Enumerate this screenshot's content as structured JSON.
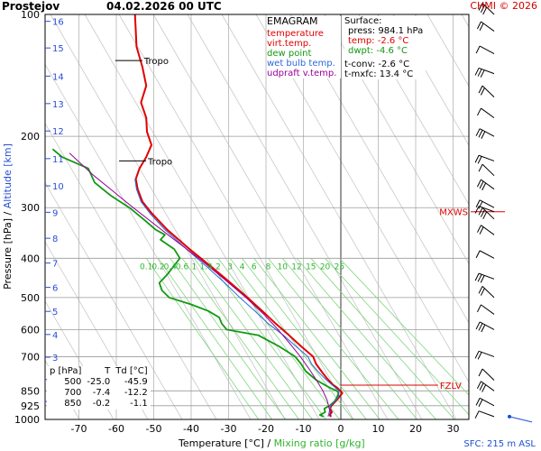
{
  "header": {
    "station": "Prostejov",
    "datetime": "04.02.2026 00 UTC",
    "credit": "CHMI © 2026"
  },
  "legend": {
    "title": "EMAGRAM",
    "items": [
      {
        "label": "temperature",
        "color": "#e00000"
      },
      {
        "label": "virt.temp.",
        "color": "#e00000"
      },
      {
        "label": "dew point",
        "color": "#119911"
      },
      {
        "label": "wet bulb temp.",
        "color": "#2a6ad9"
      },
      {
        "label": "udpraft v.temp.",
        "color": "#990099"
      }
    ]
  },
  "surface": {
    "title": "Surface:",
    "press": "press: 984.1 hPa",
    "temp": "temp: -2.6 °C",
    "dwpt": "dwpt: -4.6 °C",
    "tconv": "t-conv: -2.6 °C",
    "tmxfc": "t-mxfc: 13.4 °C"
  },
  "level_table": {
    "headers": [
      "p [hPa]",
      "T",
      "Td [°C]"
    ],
    "rows": [
      [
        "500",
        "-25.0",
        "-45.9"
      ],
      [
        "700",
        "-7.4",
        "-12.2"
      ],
      [
        "850",
        "-0.2",
        "-1.1"
      ]
    ]
  },
  "markers": {
    "tropo": "Tropo",
    "mxws": "MXWS",
    "fzlv": "FZLV"
  },
  "axes": {
    "xlabel_temp": "Temperature [°C]",
    "xlabel_sep": "/",
    "xlabel_mixing": "Mixing ratio [g/kg]",
    "ylabel_pressure": "Pressure [hPa]",
    "ylabel_sep": "/",
    "ylabel_altitude": "Altitude [km]",
    "sfc_label": "SFC: 215 m ASL"
  },
  "chart_data": {
    "type": "line",
    "y_scale": "log",
    "xlim": [
      -80,
      35
    ],
    "ylim": [
      1000,
      100
    ],
    "x_ticks": [
      -70,
      -60,
      -50,
      -40,
      -30,
      -20,
      -10,
      0,
      10,
      20,
      30
    ],
    "pressure_ticks": [
      1000,
      925,
      850,
      700,
      600,
      500,
      400,
      300,
      200,
      100
    ],
    "altitude_ticks_km": [
      {
        "km": 1,
        "p": 903
      },
      {
        "km": 2,
        "p": 797
      },
      {
        "km": 3,
        "p": 702
      },
      {
        "km": 4,
        "p": 617
      },
      {
        "km": 5,
        "p": 541
      },
      {
        "km": 6,
        "p": 472
      },
      {
        "km": 7,
        "p": 411
      },
      {
        "km": 8,
        "p": 357
      },
      {
        "km": 9,
        "p": 308
      },
      {
        "km": 10,
        "p": 265
      },
      {
        "km": 11,
        "p": 227
      },
      {
        "km": 12,
        "p": 194
      },
      {
        "km": 13,
        "p": 166
      },
      {
        "km": 14,
        "p": 142
      },
      {
        "km": 15,
        "p": 121
      },
      {
        "km": 16,
        "p": 104
      }
    ],
    "mixing_ratio_labels": [
      "0.1",
      "0.2",
      "0.4",
      "0.6",
      "1",
      "1.4",
      "2",
      "3",
      "4",
      "6",
      "8",
      "10",
      "12",
      "15",
      "20",
      "25"
    ],
    "grid": true,
    "series": [
      {
        "name": "temperature",
        "color": "#e00000",
        "points": [
          [
            984,
            -2.6
          ],
          [
            975,
            -3.0
          ],
          [
            960,
            -2.4
          ],
          [
            940,
            -2.9
          ],
          [
            925,
            -2.5
          ],
          [
            900,
            -1.3
          ],
          [
            880,
            -0.4
          ],
          [
            860,
            0.4
          ],
          [
            850,
            -0.2
          ],
          [
            835,
            -1.0
          ],
          [
            820,
            -2.2
          ],
          [
            790,
            -3.8
          ],
          [
            760,
            -5.2
          ],
          [
            730,
            -6.6
          ],
          [
            700,
            -7.4
          ],
          [
            660,
            -10.6
          ],
          [
            620,
            -13.8
          ],
          [
            580,
            -17.4
          ],
          [
            540,
            -21.0
          ],
          [
            500,
            -25.0
          ],
          [
            460,
            -29.5
          ],
          [
            420,
            -34.6
          ],
          [
            380,
            -40.4
          ],
          [
            340,
            -46.4
          ],
          [
            310,
            -50.5
          ],
          [
            290,
            -53.0
          ],
          [
            270,
            -54.3
          ],
          [
            255,
            -54.8
          ],
          [
            240,
            -53.8
          ],
          [
            225,
            -52.0
          ],
          [
            210,
            -50.6
          ],
          [
            195,
            -51.8
          ],
          [
            180,
            -52.0
          ],
          [
            165,
            -53.4
          ],
          [
            150,
            -52.0
          ],
          [
            135,
            -53.0
          ],
          [
            120,
            -54.6
          ],
          [
            110,
            -54.8
          ],
          [
            100,
            -55.0
          ]
        ]
      },
      {
        "name": "dew point",
        "color": "#119911",
        "points": [
          [
            984,
            -4.6
          ],
          [
            975,
            -5.6
          ],
          [
            960,
            -4.2
          ],
          [
            940,
            -4.4
          ],
          [
            925,
            -3.0
          ],
          [
            900,
            -1.6
          ],
          [
            880,
            -1.0
          ],
          [
            860,
            -0.6
          ],
          [
            850,
            -1.1
          ],
          [
            835,
            -3.0
          ],
          [
            800,
            -6.5
          ],
          [
            760,
            -9.4
          ],
          [
            730,
            -10.6
          ],
          [
            700,
            -12.2
          ],
          [
            660,
            -16.5
          ],
          [
            620,
            -22.0
          ],
          [
            600,
            -30.5
          ],
          [
            580,
            -31.8
          ],
          [
            560,
            -32.5
          ],
          [
            540,
            -35.4
          ],
          [
            520,
            -40.0
          ],
          [
            500,
            -45.9
          ],
          [
            480,
            -47.8
          ],
          [
            460,
            -48.5
          ],
          [
            440,
            -46.5
          ],
          [
            420,
            -44.8
          ],
          [
            400,
            -43.0
          ],
          [
            380,
            -44.5
          ],
          [
            360,
            -48.2
          ],
          [
            350,
            -47.0
          ],
          [
            340,
            -49.5
          ],
          [
            320,
            -52.8
          ],
          [
            300,
            -56.5
          ],
          [
            280,
            -61.5
          ],
          [
            260,
            -65.8
          ],
          [
            240,
            -67.5
          ],
          [
            225,
            -74.5
          ],
          [
            215,
            -77.0
          ]
        ]
      },
      {
        "name": "wet bulb temp.",
        "color": "#2a6ad9",
        "points": [
          [
            984,
            -3.4
          ],
          [
            925,
            -2.7
          ],
          [
            880,
            -0.6
          ],
          [
            850,
            -0.5
          ],
          [
            800,
            -3.8
          ],
          [
            760,
            -6.2
          ],
          [
            730,
            -7.8
          ],
          [
            700,
            -8.8
          ],
          [
            660,
            -12.0
          ],
          [
            620,
            -15.3
          ],
          [
            580,
            -19.4
          ],
          [
            540,
            -23.0
          ],
          [
            500,
            -27.0
          ],
          [
            460,
            -31.0
          ],
          [
            420,
            -35.8
          ],
          [
            380,
            -41.2
          ],
          [
            340,
            -47.0
          ],
          [
            310,
            -51.0
          ],
          [
            290,
            -53.4
          ],
          [
            270,
            -54.6
          ],
          [
            255,
            -55.0
          ]
        ]
      },
      {
        "name": "udpraft v.temp.",
        "color": "#990099",
        "points": [
          [
            984,
            -2.6
          ],
          [
            900,
            -3.6
          ],
          [
            850,
            -4.8
          ],
          [
            800,
            -6.5
          ],
          [
            750,
            -8.5
          ],
          [
            700,
            -10.8
          ],
          [
            650,
            -13.6
          ],
          [
            600,
            -16.8
          ],
          [
            550,
            -20.6
          ],
          [
            500,
            -25.4
          ],
          [
            450,
            -31.2
          ],
          [
            400,
            -38.0
          ],
          [
            350,
            -46.2
          ],
          [
            300,
            -55.5
          ],
          [
            250,
            -66.0
          ],
          [
            220,
            -72.5
          ]
        ]
      }
    ],
    "annotations": [
      {
        "text": "Tropo",
        "p": 130
      },
      {
        "text": "Tropo",
        "p": 230
      },
      {
        "text": "MXWS",
        "p": 307
      },
      {
        "text": "FZLV",
        "p": 823
      }
    ],
    "wind_barbs_p": [
      984,
      925,
      850,
      800,
      700,
      600,
      550,
      500,
      450,
      400,
      350,
      320,
      307,
      300,
      270,
      250,
      230,
      200,
      180,
      160,
      140,
      125,
      110,
      100
    ]
  }
}
